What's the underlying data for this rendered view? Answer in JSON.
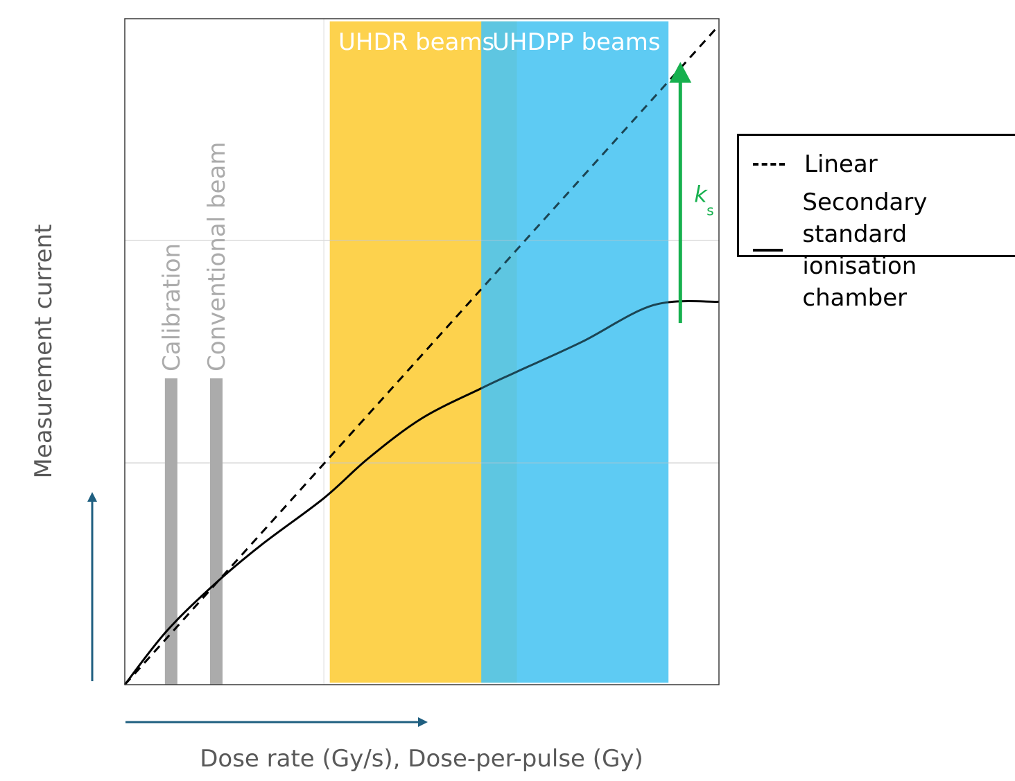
{
  "chart_data": {
    "type": "line",
    "title": "",
    "xlabel": "Dose rate (Gy/s), Dose-per-pulse (Gy)",
    "ylabel": "Measurement current",
    "xlim": [
      0,
      100
    ],
    "ylim": [
      0,
      100
    ],
    "grid": true,
    "series": [
      {
        "name": "Linear",
        "style": "dashed",
        "x": [
          0,
          100
        ],
        "y": [
          0,
          99
        ]
      },
      {
        "name": "Secondary standard\nionisation chamber",
        "style": "solid",
        "x": [
          0,
          7,
          15,
          23,
          33.5,
          41,
          50,
          60,
          66,
          77,
          89,
          100
        ],
        "y": [
          0,
          8,
          15,
          21,
          28,
          34,
          40,
          44.5,
          47,
          51.5,
          57,
          57.5
        ]
      }
    ],
    "regions": [
      {
        "label": "UHDR beams",
        "x_range": [
          34.5,
          66
        ],
        "color": "#FDD24D"
      },
      {
        "label": "UHDPP beams",
        "x_range": [
          60,
          91.5
        ],
        "color": "#4CC6F2"
      }
    ],
    "markers": [
      {
        "label": "Calibration",
        "x": 7.8,
        "y_range": [
          0,
          46
        ],
        "color": "#ABABAB"
      },
      {
        "label": "Conventional beam",
        "x": 15.4,
        "y_range": [
          0,
          46
        ],
        "color": "#ABABAB"
      }
    ],
    "annotation": {
      "label": "k",
      "subscript": "s",
      "x": 93.5,
      "y_from": 54.3,
      "y_to": 93.5,
      "color": "#16B04E"
    },
    "legend": {
      "position": "right"
    },
    "axis_arrow_color": "#1F5F80"
  }
}
